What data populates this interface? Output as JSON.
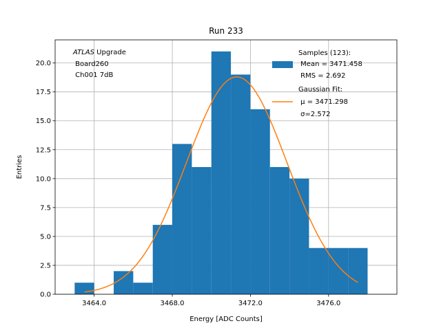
{
  "chart_data": {
    "type": "bar",
    "title": "Run 233",
    "xlabel": "Energy [ADC Counts]",
    "ylabel": "Entries",
    "xlim": [
      3462.0,
      3479.5
    ],
    "ylim": [
      0,
      22.0
    ],
    "grid": true,
    "x_ticks": [
      3464,
      3468,
      3472,
      3476
    ],
    "x_tick_labels": [
      "3464.0",
      "3468.0",
      "3472.0",
      "3476.0"
    ],
    "y_ticks": [
      0,
      2.5,
      5,
      7.5,
      10,
      12.5,
      15,
      17.5,
      20
    ],
    "y_tick_labels": [
      "0.0",
      "2.5",
      "5.0",
      "7.5",
      "10.0",
      "12.5",
      "15.0",
      "17.5",
      "20.0"
    ],
    "histogram": {
      "name": "Samples (123)",
      "color": "#1f77b4",
      "bin_edges": [
        3463.0,
        3464.0,
        3465.0,
        3466.0,
        3467.0,
        3468.0,
        3469.0,
        3470.0,
        3471.0,
        3472.0,
        3473.0,
        3474.0,
        3475.0,
        3476.0,
        3477.0,
        3478.0
      ],
      "counts": [
        1,
        0,
        2,
        1,
        6,
        13,
        11,
        21,
        19,
        16,
        11,
        10,
        4,
        4,
        4
      ]
    },
    "fit": {
      "name": "Gaussian Fit",
      "color": "#ff7f0e",
      "mu": 3471.298,
      "sigma": 2.572,
      "amplitude": 18.8,
      "x_range": [
        3463.5,
        3477.5
      ]
    },
    "annotation": {
      "italic": "ATLAS",
      "line1_rest": " Upgrade",
      "line2": " Board260",
      "line3": " Ch001 7dB"
    },
    "legend": {
      "position": "top-right",
      "hist_lines": [
        "Samples (123):",
        " Mean = 3471.458",
        " RMS = 2.692"
      ],
      "fit_lines": [
        "Gaussian Fit:",
        " μ = 3471.298",
        " σ=2.572"
      ]
    }
  }
}
